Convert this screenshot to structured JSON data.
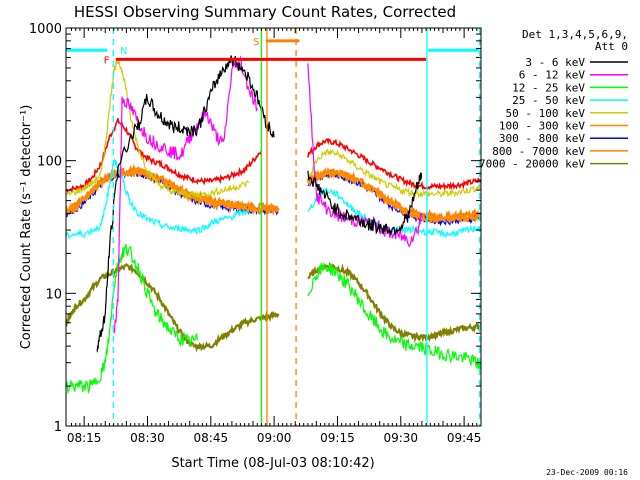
{
  "chart_data": {
    "type": "line",
    "title": "HESSI Observing Summary Count Rates, Corrected",
    "xlabel": "Start Time (08-Jul-03 08:10:42)",
    "ylabel": "Corrected Count Rate (s⁻¹ detector⁻¹)",
    "yscale": "log",
    "ylim": [
      1,
      1000
    ],
    "xlim_minutes_after_0800": [
      10.7,
      49.0
    ],
    "y_ticks": [
      "1",
      "10",
      "100",
      "1000"
    ],
    "x_ticks": [
      "08:15",
      "08:30",
      "08:45",
      "09:00",
      "09:15",
      "09:30",
      "09:45"
    ],
    "legend_header": [
      "Det 1,3,4,5,6,9,",
      "Att 0"
    ],
    "legend_position": "right",
    "footer_date": "23-Dec-2009 00:16",
    "series": [
      {
        "name": "3 - 6 keV",
        "color": "#000000",
        "x": [
          18,
          19,
          20,
          21,
          23,
          26,
          28,
          30,
          32,
          34,
          36,
          38,
          40,
          42,
          44,
          46,
          48,
          50,
          52,
          54,
          56,
          58,
          60
        ],
        "y": [
          4,
          5,
          7,
          22,
          90,
          150,
          190,
          300,
          230,
          200,
          180,
          175,
          170,
          175,
          260,
          380,
          500,
          580,
          520,
          420,
          300,
          200,
          150
        ]
      },
      {
        "name": "6 - 12 keV",
        "color": "#ff00ff",
        "x": [
          22,
          23,
          24,
          26,
          28,
          30,
          32,
          34,
          36,
          38,
          40,
          42,
          44,
          46,
          48,
          50,
          52,
          54,
          56
        ],
        "y": [
          5,
          9,
          300,
          250,
          190,
          150,
          135,
          125,
          115,
          110,
          150,
          190,
          230,
          160,
          130,
          480,
          560,
          350,
          250
        ]
      },
      {
        "name": "12 - 25 keV",
        "color": "#00ff00",
        "x": [
          10.7,
          13,
          15,
          17,
          19,
          20,
          21,
          22,
          23,
          24,
          25,
          26,
          28,
          30,
          32,
          34,
          36,
          38,
          40,
          42
        ],
        "y": [
          2,
          2,
          2,
          2,
          2.5,
          3,
          5,
          11,
          17,
          20,
          22,
          20,
          15,
          10,
          7,
          6,
          5,
          4.5,
          4.3,
          4.5
        ]
      },
      {
        "name": "25 - 50 keV",
        "color": "#00ffff",
        "x": [
          10.7,
          13,
          15,
          17,
          19,
          20,
          21,
          22,
          23,
          24,
          25,
          26,
          28,
          30,
          32,
          34,
          36,
          38,
          40,
          42,
          44,
          46,
          48,
          50,
          52,
          54
        ],
        "y": [
          27,
          28,
          28,
          30,
          32,
          45,
          65,
          100,
          90,
          75,
          58,
          48,
          40,
          36,
          34,
          32,
          31,
          31,
          30,
          30,
          32,
          35,
          36,
          38,
          40,
          42
        ]
      },
      {
        "name": "50 - 100 keV",
        "color": "#cccc00",
        "x": [
          10.7,
          13,
          15,
          17,
          19,
          20,
          21,
          22,
          23,
          24,
          25,
          26,
          28,
          30,
          32,
          34,
          36,
          38,
          40,
          42,
          44,
          46,
          48,
          50,
          52,
          54
        ],
        "y": [
          55,
          58,
          62,
          68,
          80,
          130,
          250,
          480,
          560,
          480,
          340,
          210,
          120,
          85,
          70,
          62,
          58,
          57,
          56,
          55,
          56,
          58,
          60,
          62,
          65,
          68
        ]
      },
      {
        "name": "100 - 300 keV",
        "color": "#ff8c00",
        "x": [
          10.7,
          13,
          15,
          17,
          19,
          21,
          23,
          25,
          27,
          29,
          31,
          33,
          35,
          37,
          39,
          41,
          43,
          45,
          47,
          49,
          51,
          53,
          55,
          57,
          59,
          61
        ],
        "y": [
          41,
          44,
          50,
          58,
          68,
          76,
          80,
          82,
          82,
          80,
          76,
          72,
          66,
          60,
          56,
          52,
          50,
          48,
          47,
          46,
          45,
          44,
          43,
          43,
          42,
          42
        ]
      },
      {
        "name": "300 - 800 keV",
        "color": "#0000ff",
        "x": [
          10.7,
          13,
          15,
          17,
          19,
          21,
          23,
          25,
          27,
          29,
          31,
          33,
          35,
          37,
          39,
          41,
          43,
          45,
          47,
          49,
          51,
          53,
          55,
          57,
          59,
          61
        ],
        "y": [
          40,
          43,
          48,
          56,
          66,
          74,
          78,
          80,
          80,
          78,
          74,
          70,
          64,
          58,
          54,
          50,
          48,
          46,
          45,
          44,
          43,
          43,
          42,
          42,
          41,
          41
        ]
      },
      {
        "name": "800 - 7000 keV",
        "color": "#ff8000",
        "x": [
          10.7,
          13,
          15,
          17,
          19,
          21,
          23,
          25,
          27,
          29,
          31,
          33,
          35,
          37,
          39,
          41,
          43,
          45,
          47,
          49,
          51,
          53,
          55,
          57,
          59,
          61
        ],
        "y": [
          43,
          46,
          52,
          60,
          70,
          78,
          82,
          84,
          84,
          82,
          78,
          74,
          68,
          62,
          58,
          54,
          52,
          50,
          49,
          48,
          47,
          46,
          45,
          45,
          44,
          44
        ]
      },
      {
        "name": "7000 - 20000 keV",
        "color": "#808000",
        "x": [
          10.7,
          12,
          13,
          15,
          17,
          19,
          21,
          23,
          25,
          27,
          29,
          31,
          33,
          35,
          37,
          39,
          41,
          43,
          45,
          47,
          49,
          51,
          53,
          55,
          57,
          59,
          61
        ],
        "y": [
          6,
          7,
          8,
          9,
          11,
          13,
          14,
          15,
          16,
          15,
          13,
          11,
          9,
          7,
          5.5,
          4.5,
          4,
          4,
          4,
          4.5,
          5,
          5.5,
          6,
          6.3,
          6.5,
          6.7,
          7
        ]
      }
    ],
    "series_gap_2": [
      {
        "name": "3 - 6 keV",
        "x": [
          68,
          70,
          72,
          74,
          76,
          78,
          80,
          82,
          84,
          86,
          88,
          90,
          92,
          94,
          95
        ],
        "y": [
          80,
          65,
          55,
          45,
          40,
          38,
          36,
          33,
          32,
          31,
          30,
          32,
          40,
          65,
          80
        ]
      },
      {
        "name": "6 - 12 keV",
        "x": [
          68,
          70,
          72,
          74,
          76,
          78,
          80,
          82,
          84,
          86,
          88,
          90,
          92,
          94,
          95
        ],
        "y": [
          500,
          55,
          45,
          40,
          38,
          36,
          35,
          34,
          33,
          30,
          28,
          27,
          25,
          30,
          40
        ]
      },
      {
        "name": "12 - 25 keV",
        "x": [
          68,
          70,
          72,
          74,
          76,
          78,
          80,
          82,
          84,
          86,
          88,
          90,
          92,
          94,
          96,
          98,
          100,
          102,
          104,
          106,
          108,
          109.3
        ],
        "y": [
          10,
          14,
          16,
          15,
          13,
          11,
          9,
          7,
          6,
          5,
          4.5,
          4.2,
          4,
          4,
          3.8,
          3.6,
          3.5,
          3.4,
          3.3,
          3.2,
          3,
          2.8
        ]
      },
      {
        "name": "25 - 50 keV",
        "x": [
          68,
          70,
          72,
          74,
          76,
          78,
          80,
          82,
          84,
          86,
          88,
          90,
          92,
          94,
          96,
          98,
          100,
          102,
          104,
          106,
          108,
          109.3
        ],
        "y": [
          40,
          52,
          60,
          58,
          52,
          45,
          40,
          36,
          33,
          31,
          30,
          30,
          30,
          30,
          29,
          29,
          28,
          28,
          29,
          30,
          31,
          31
        ]
      },
      {
        "name": "50 - 100 keV",
        "x": [
          68,
          70,
          72,
          74,
          76,
          78,
          80,
          82,
          84,
          86,
          88,
          90,
          92,
          94,
          96,
          98,
          100,
          102,
          104,
          106,
          108,
          109.3
        ],
        "y": [
          70,
          100,
          115,
          115,
          108,
          98,
          88,
          80,
          73,
          67,
          63,
          60,
          58,
          57,
          56,
          56,
          56,
          57,
          58,
          60,
          62,
          63
        ]
      },
      {
        "name": "100 - 300 keV",
        "x": [
          68,
          70,
          72,
          74,
          76,
          78,
          80,
          82,
          84,
          86,
          88,
          90,
          92,
          94,
          96,
          98,
          100,
          102,
          104,
          106,
          108,
          109.3
        ],
        "y": [
          70,
          76,
          80,
          80,
          78,
          74,
          70,
          64,
          58,
          52,
          47,
          43,
          40,
          38,
          37,
          36,
          36,
          36,
          37,
          37,
          38,
          38
        ]
      },
      {
        "name": "300 - 800 keV",
        "x": [
          68,
          70,
          72,
          74,
          76,
          78,
          80,
          82,
          84,
          86,
          88,
          90,
          92,
          94,
          96,
          98,
          100,
          102,
          104,
          106,
          108,
          109.3
        ],
        "y": [
          68,
          74,
          78,
          78,
          76,
          72,
          68,
          62,
          56,
          50,
          45,
          42,
          39,
          37,
          36,
          35,
          35,
          35,
          36,
          36,
          37,
          37
        ]
      },
      {
        "name": "800 - 7000 keV",
        "x": [
          68,
          70,
          72,
          74,
          76,
          78,
          80,
          82,
          84,
          86,
          88,
          90,
          92,
          94,
          96,
          98,
          100,
          102,
          104,
          106,
          108,
          109.3
        ],
        "y": [
          72,
          78,
          82,
          82,
          80,
          76,
          72,
          66,
          60,
          54,
          49,
          45,
          42,
          40,
          39,
          38,
          38,
          38,
          39,
          39,
          40,
          40
        ]
      },
      {
        "name": "7000 - 20000 keV",
        "x": [
          68,
          70,
          72,
          74,
          76,
          78,
          80,
          82,
          84,
          86,
          88,
          90,
          92,
          94,
          96,
          98,
          100,
          102,
          104,
          106,
          108,
          109.3
        ],
        "y": [
          13,
          15,
          16,
          16,
          15,
          14,
          12,
          10,
          8,
          6.5,
          5.5,
          5,
          4.8,
          4.7,
          4.7,
          4.8,
          5,
          5.2,
          5.4,
          5.5,
          5.6,
          5.7
        ]
      }
    ],
    "red_flare_series": {
      "color": "#ff0000",
      "x": [
        10.7,
        13,
        15,
        17,
        19,
        21,
        23,
        25,
        27,
        29,
        31,
        33,
        35,
        37,
        39,
        41,
        43,
        45,
        47,
        49,
        51,
        53,
        55,
        57
      ],
      "y": [
        60,
        62,
        65,
        75,
        95,
        150,
        200,
        170,
        130,
        110,
        100,
        95,
        88,
        80,
        75,
        72,
        70,
        70,
        72,
        75,
        80,
        85,
        100,
        120
      ],
      "x2": [
        68,
        70,
        72,
        74,
        76,
        78,
        80,
        82,
        84,
        86,
        88,
        90,
        92,
        94,
        96,
        98,
        100,
        102,
        104,
        106,
        108,
        109.3
      ],
      "y2": [
        110,
        130,
        140,
        138,
        130,
        120,
        110,
        100,
        92,
        85,
        78,
        72,
        68,
        65,
        64,
        64,
        64,
        65,
        66,
        68,
        70,
        72
      ]
    },
    "annotations": [
      {
        "label": "F",
        "color": "#ff0000"
      },
      {
        "label": "N",
        "color": "#00ffff"
      },
      {
        "label": "S",
        "color": "#ff8000"
      }
    ],
    "flag_bars": [
      {
        "color": "#ff0000",
        "x_start": 22.5,
        "x_end": 96,
        "y": 580
      },
      {
        "color": "#00ffff",
        "x_start": 10.7,
        "x_end": 20.5,
        "y": 680
      },
      {
        "color": "#00ffff",
        "x_start": 96.5,
        "x_end": 108.5,
        "y": 680
      },
      {
        "color": "#ff8000",
        "x_start": 58,
        "x_end": 66,
        "y": 800
      }
    ],
    "vlines": [
      {
        "x": 21.9,
        "color": "#00ffff",
        "style": "dashed"
      },
      {
        "x": 57.0,
        "color": "#00ff00",
        "style": "solid"
      },
      {
        "x": 58.3,
        "color": "#ff8000",
        "style": "solid"
      },
      {
        "x": 65.2,
        "color": "#ff8000",
        "style": "dashed"
      },
      {
        "x": 96.2,
        "color": "#00ffff",
        "style": "solid"
      },
      {
        "x": 108.7,
        "color": "#00ffff",
        "style": "dashed"
      }
    ],
    "grid": false
  }
}
